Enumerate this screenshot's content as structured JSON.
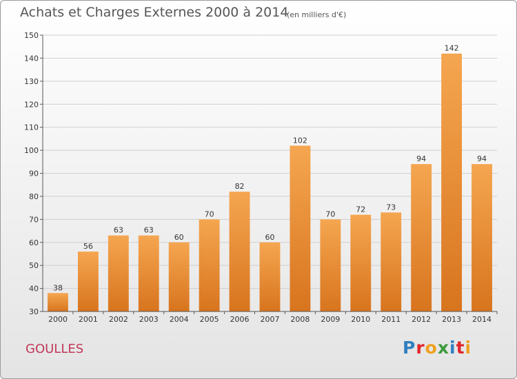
{
  "title": "Achats et Charges Externes 2000 à 2014",
  "unit_note": "(en milliers d'€)",
  "commune": "GOULLES",
  "logo_text": "Proxiti",
  "colors": {
    "bar_top": "#f5a650",
    "bar_bottom": "#d8741e",
    "grid": "#cfcfcf",
    "axis": "#555555",
    "commune_text": "#c0395a"
  },
  "chart_data": {
    "type": "bar",
    "title": "Achats et Charges Externes 2000 à 2014",
    "xlabel": "",
    "ylabel": "",
    "ylim": [
      30,
      150
    ],
    "yticks": [
      30,
      40,
      50,
      60,
      70,
      80,
      90,
      100,
      110,
      120,
      130,
      140,
      150
    ],
    "grid": true,
    "categories": [
      "2000",
      "2001",
      "2002",
      "2003",
      "2004",
      "2005",
      "2006",
      "2007",
      "2008",
      "2009",
      "2010",
      "2011",
      "2012",
      "2013",
      "2014"
    ],
    "values": [
      38,
      56,
      63,
      63,
      60,
      70,
      82,
      60,
      102,
      70,
      72,
      73,
      94,
      142,
      94
    ]
  }
}
